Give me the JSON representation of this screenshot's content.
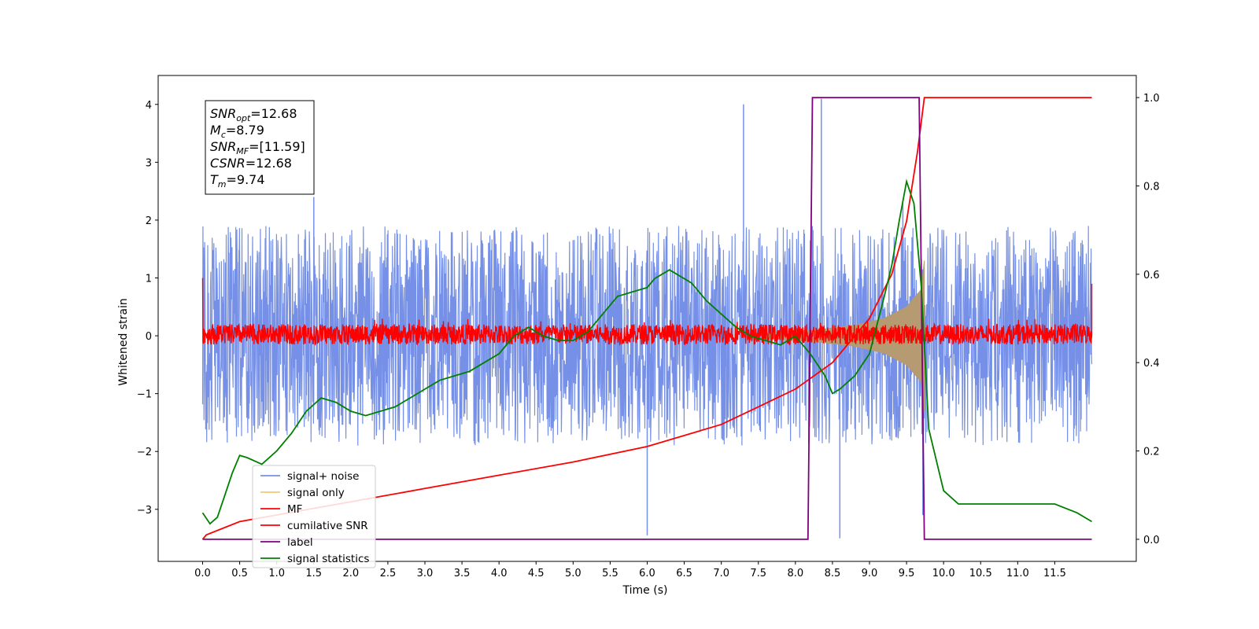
{
  "chart_data": {
    "type": "line",
    "title": "",
    "xlabel": "Time (s)",
    "ylabel": "Whitened strain",
    "xlim": [
      -0.6,
      12.6
    ],
    "ylim": [
      -3.9,
      4.5
    ],
    "y2lim": [
      -0.05,
      1.05
    ],
    "grid": false,
    "legend_position": "lower-left",
    "xticks": [
      "0.0",
      "0.5",
      "1.0",
      "1.5",
      "2.0",
      "2.5",
      "3.0",
      "3.5",
      "4.0",
      "4.5",
      "5.0",
      "5.5",
      "6.0",
      "6.5",
      "7.0",
      "7.5",
      "8.0",
      "8.5",
      "9.0",
      "9.5",
      "10.0",
      "10.5",
      "11.0",
      "11.5"
    ],
    "yticks": [
      "−3",
      "−2",
      "−1",
      "0",
      "1",
      "2",
      "3",
      "4"
    ],
    "y2ticks": [
      "0.0",
      "0.2",
      "0.4",
      "0.6",
      "0.8",
      "1.0"
    ],
    "annotation": {
      "lines": [
        {
          "main": "SNR",
          "sub": "opt",
          "rest": "=12.68"
        },
        {
          "main": "M",
          "sub": "c",
          "rest": "=8.79"
        },
        {
          "main": "SNR",
          "sub": "MF",
          "rest": "=[11.59]"
        },
        {
          "main": "CSNR",
          "sub": "",
          "rest": "=12.68"
        },
        {
          "main": "T",
          "sub": "m",
          "rest": "=9.74"
        }
      ]
    },
    "series": [
      {
        "name": "signal+ noise",
        "color": "#7590e6",
        "axis": "left",
        "kind": "noise",
        "x_range": [
          0.0,
          12.0
        ],
        "typical_range": [
          -1.6,
          1.8
        ],
        "peaks": [
          [
            1.5,
            2.4
          ],
          [
            6.0,
            -3.45
          ],
          [
            7.3,
            4.0
          ],
          [
            8.35,
            4.1
          ],
          [
            8.6,
            -3.5
          ],
          [
            9.45,
            2.3
          ],
          [
            9.72,
            -3.1
          ]
        ]
      },
      {
        "name": "signal only",
        "color": "#f5c872",
        "axis": "left",
        "kind": "chirp",
        "x": [
          7.6,
          8.0,
          8.4,
          8.8,
          9.2,
          9.5,
          9.7,
          9.74
        ],
        "amplitude": [
          0.05,
          0.08,
          0.12,
          0.18,
          0.3,
          0.5,
          0.8,
          1.3
        ]
      },
      {
        "name": "MF",
        "color": "#ff0000",
        "axis": "left",
        "kind": "noise_small",
        "x_range": [
          0.0,
          12.0
        ],
        "typical_range": [
          -0.15,
          0.2
        ],
        "edges": [
          [
            0.0,
            1.0
          ],
          [
            12.0,
            0.9
          ]
        ]
      },
      {
        "name": "cumilative SNR",
        "color": "#ff0000",
        "axis": "right",
        "x": [
          0.0,
          0.05,
          0.5,
          1.0,
          2.0,
          3.0,
          4.0,
          5.0,
          6.0,
          7.0,
          7.5,
          8.0,
          8.5,
          9.0,
          9.3,
          9.5,
          9.65,
          9.74,
          9.8,
          12.0
        ],
        "y": [
          0.0,
          0.01,
          0.04,
          0.055,
          0.085,
          0.115,
          0.145,
          0.175,
          0.21,
          0.26,
          0.3,
          0.34,
          0.4,
          0.5,
          0.6,
          0.72,
          0.88,
          1.0,
          1.0,
          1.0
        ]
      },
      {
        "name": "label",
        "color": "#800080",
        "axis": "right",
        "x": [
          0.0,
          8.17,
          8.23,
          9.67,
          9.74,
          12.0
        ],
        "y": [
          0.0,
          0.0,
          1.0,
          1.0,
          0.0,
          0.0
        ]
      },
      {
        "name": "signal statistics",
        "color": "#008000",
        "axis": "right",
        "x": [
          0.0,
          0.1,
          0.2,
          0.3,
          0.4,
          0.5,
          0.6,
          0.8,
          1.0,
          1.2,
          1.4,
          1.6,
          1.8,
          2.0,
          2.2,
          2.4,
          2.6,
          2.8,
          3.0,
          3.2,
          3.4,
          3.6,
          3.8,
          4.0,
          4.2,
          4.4,
          4.6,
          4.8,
          5.0,
          5.2,
          5.4,
          5.6,
          5.8,
          6.0,
          6.1,
          6.2,
          6.3,
          6.4,
          6.5,
          6.6,
          6.8,
          7.0,
          7.2,
          7.4,
          7.6,
          7.8,
          8.0,
          8.2,
          8.4,
          8.5,
          8.6,
          8.8,
          9.0,
          9.2,
          9.3,
          9.4,
          9.5,
          9.6,
          9.7,
          9.8,
          10.0,
          10.2,
          10.5,
          11.0,
          11.5,
          11.8,
          12.0
        ],
        "y": [
          0.06,
          0.035,
          0.05,
          0.1,
          0.15,
          0.19,
          0.185,
          0.17,
          0.2,
          0.24,
          0.29,
          0.32,
          0.31,
          0.29,
          0.28,
          0.29,
          0.3,
          0.32,
          0.34,
          0.36,
          0.37,
          0.38,
          0.4,
          0.42,
          0.46,
          0.48,
          0.46,
          0.45,
          0.45,
          0.47,
          0.51,
          0.55,
          0.56,
          0.57,
          0.59,
          0.6,
          0.61,
          0.6,
          0.59,
          0.58,
          0.54,
          0.51,
          0.48,
          0.46,
          0.45,
          0.44,
          0.46,
          0.42,
          0.37,
          0.33,
          0.34,
          0.37,
          0.42,
          0.55,
          0.62,
          0.72,
          0.81,
          0.76,
          0.57,
          0.25,
          0.11,
          0.08,
          0.08,
          0.08,
          0.08,
          0.06,
          0.04
        ]
      }
    ]
  }
}
